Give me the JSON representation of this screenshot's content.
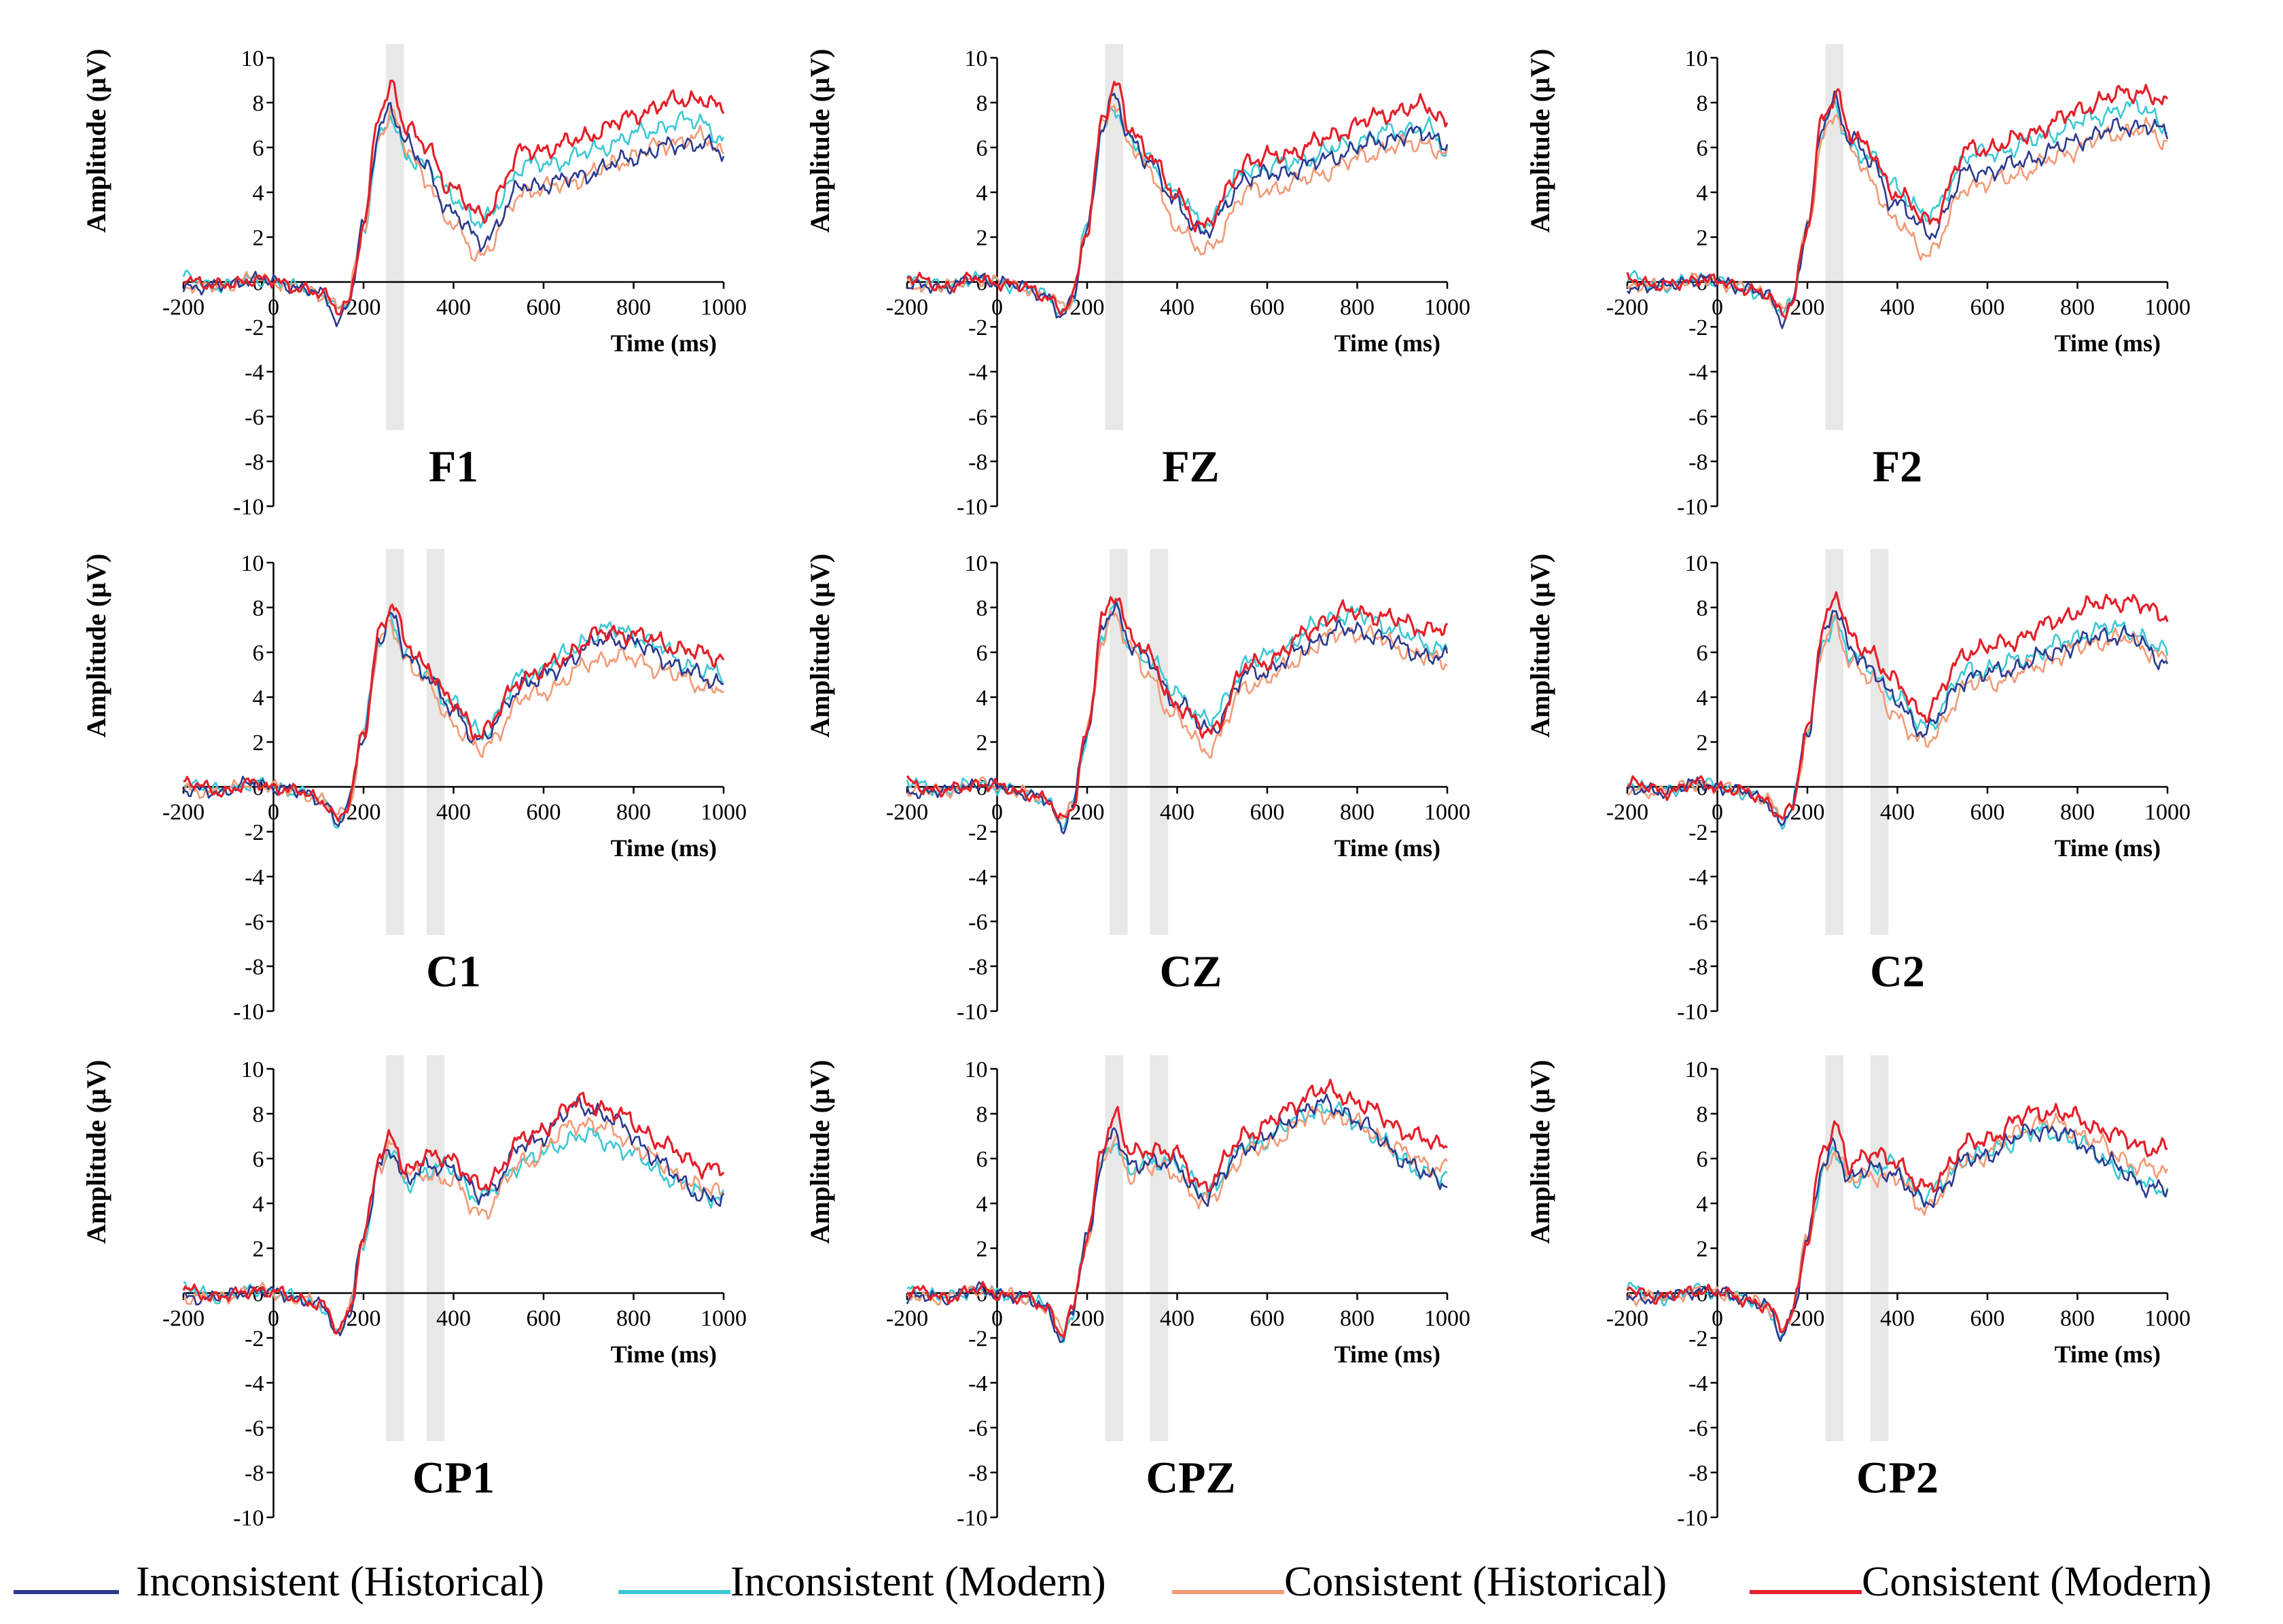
{
  "chart_data": {
    "type": "line",
    "layout": "3x3 grid",
    "x_axis": {
      "label": "Time (ms)",
      "range": [
        -200,
        1000
      ],
      "ticks": [
        -200,
        0,
        200,
        400,
        600,
        800,
        1000
      ]
    },
    "y_axis": {
      "label": "Amplitude (µV)",
      "range": [
        -10,
        10
      ],
      "ticks": [
        -10,
        -8,
        -6,
        -4,
        -2,
        0,
        2,
        4,
        6,
        8,
        10
      ]
    },
    "legend": {
      "placement": "bottom",
      "entries": [
        {
          "name": "Inconsistent (Historical)",
          "color": "#2b3a8f"
        },
        {
          "name": "Inconsistent (Modern)",
          "color": "#3cc8d4"
        },
        {
          "name": "Consistent (Historical)",
          "color": "#f29a76"
        },
        {
          "name": "Consistent (Modern)",
          "color": "#e4202a"
        }
      ]
    },
    "panels": [
      {
        "title": "F1",
        "highlight_windows": [
          [
            250,
            290
          ]
        ],
        "peak": [
          7.9,
          7.3,
          7.6,
          8.8
        ],
        "trough_time": 460,
        "trough": [
          1.8,
          2.6,
          1.2,
          2.9
        ],
        "early_dip": [
          -1.8,
          -1.3,
          -1.0,
          -1.2
        ],
        "late": [
          5.7,
          6.3,
          5.8,
          7.6
        ],
        "late_peak_time": 950,
        "late_peak": [
          6.2,
          7.2,
          6.4,
          8.2
        ]
      },
      {
        "title": "FZ",
        "highlight_windows": [
          [
            240,
            280
          ]
        ],
        "peak": [
          8.2,
          7.9,
          8.0,
          8.7
        ],
        "trough_time": 460,
        "trough": [
          2.2,
          2.6,
          1.3,
          2.5
        ],
        "early_dip": [
          -1.6,
          -1.4,
          -1.1,
          -1.3
        ],
        "late": [
          6.2,
          5.8,
          5.6,
          7.2
        ],
        "late_peak_time": 950,
        "late_peak": [
          6.6,
          6.9,
          6.2,
          7.8
        ]
      },
      {
        "title": "F2",
        "highlight_windows": [
          [
            240,
            280
          ]
        ],
        "peak": [
          8.2,
          7.8,
          7.6,
          8.5
        ],
        "trough_time": 470,
        "trough": [
          2.2,
          2.9,
          1.3,
          2.7
        ],
        "early_dip": [
          -1.7,
          -1.5,
          -1.2,
          -1.4
        ],
        "late": [
          6.6,
          6.8,
          6.2,
          7.8
        ],
        "late_peak_time": 950,
        "late_peak": [
          7.0,
          7.8,
          6.8,
          8.5
        ]
      },
      {
        "title": "C1",
        "highlight_windows": [
          [
            250,
            290
          ],
          [
            340,
            380
          ]
        ],
        "peak": [
          7.6,
          7.5,
          7.3,
          8.1
        ],
        "trough_time": 460,
        "trough": [
          2.1,
          2.4,
          1.6,
          2.4
        ],
        "early_dip": [
          -1.7,
          -1.6,
          -1.3,
          -1.5
        ],
        "late": [
          4.7,
          5.0,
          4.4,
          5.8
        ],
        "late_peak_time": 750,
        "late_peak": [
          6.6,
          7.0,
          5.8,
          6.9
        ]
      },
      {
        "title": "CZ",
        "highlight_windows": [
          [
            250,
            290
          ],
          [
            340,
            380
          ]
        ],
        "peak": [
          8.2,
          8.0,
          7.8,
          8.7
        ],
        "trough_time": 470,
        "trough": [
          2.5,
          2.9,
          1.7,
          2.4
        ],
        "early_dip": [
          -1.9,
          -1.8,
          -1.4,
          -1.5
        ],
        "late": [
          5.7,
          6.2,
          5.6,
          7.0
        ],
        "late_peak_time": 780,
        "late_peak": [
          7.0,
          7.7,
          6.9,
          7.8
        ]
      },
      {
        "title": "C2",
        "highlight_windows": [
          [
            240,
            280
          ],
          [
            340,
            380
          ]
        ],
        "peak": [
          7.9,
          7.5,
          7.3,
          8.5
        ],
        "trough_time": 460,
        "trough": [
          2.5,
          2.7,
          1.9,
          3.3
        ],
        "early_dip": [
          -1.8,
          -1.6,
          -1.3,
          -1.4
        ],
        "late": [
          5.6,
          6.0,
          5.8,
          7.7
        ],
        "late_peak_time": 900,
        "late_peak": [
          6.8,
          7.1,
          6.6,
          8.3
        ]
      },
      {
        "title": "CP1",
        "highlight_windows": [
          [
            250,
            290
          ],
          [
            340,
            380
          ]
        ],
        "peak": [
          6.5,
          6.3,
          6.7,
          7.0
        ],
        "trough_time": 460,
        "trough": [
          4.3,
          4.2,
          3.6,
          4.7
        ],
        "early_dip": [
          -2.0,
          -1.9,
          -1.6,
          -1.7
        ],
        "late": [
          4.1,
          4.3,
          4.5,
          5.5
        ],
        "late_peak_time": 680,
        "late_peak": [
          8.3,
          7.0,
          7.6,
          8.5
        ]
      },
      {
        "title": "CPZ",
        "highlight_windows": [
          [
            240,
            280
          ],
          [
            340,
            380
          ]
        ],
        "peak": [
          7.2,
          6.9,
          6.8,
          7.9
        ],
        "trough_time": 460,
        "trough": [
          4.3,
          4.5,
          4.0,
          4.8
        ],
        "early_dip": [
          -2.2,
          -2.1,
          -1.7,
          -1.8
        ],
        "late": [
          5.0,
          5.1,
          5.6,
          6.6
        ],
        "late_peak_time": 720,
        "late_peak": [
          8.4,
          8.2,
          8.0,
          9.0
        ]
      },
      {
        "title": "CP2",
        "highlight_windows": [
          [
            240,
            280
          ],
          [
            340,
            380
          ]
        ],
        "peak": [
          6.6,
          6.3,
          6.4,
          7.4
        ],
        "trough_time": 460,
        "trough": [
          4.0,
          4.3,
          3.8,
          4.6
        ],
        "early_dip": [
          -2.0,
          -2.1,
          -1.6,
          -1.6
        ],
        "late": [
          4.6,
          4.7,
          5.4,
          6.4
        ],
        "late_peak_time": 720,
        "late_peak": [
          7.3,
          7.2,
          7.6,
          8.1
        ]
      }
    ]
  }
}
